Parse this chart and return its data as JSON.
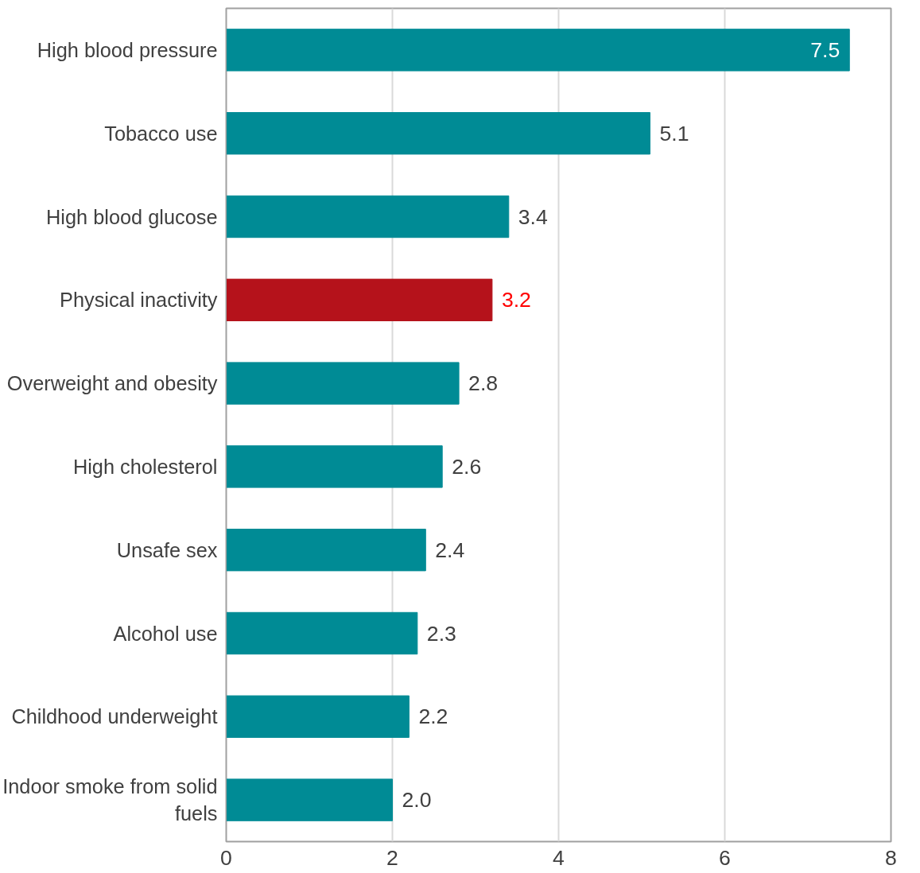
{
  "chart_data": {
    "type": "bar",
    "orientation": "horizontal",
    "categories": [
      "High blood pressure",
      "Tobacco use",
      "High blood glucose",
      "Physical inactivity",
      "Overweight and obesity",
      "High cholesterol",
      "Unsafe sex",
      "Alcohol use",
      "Childhood underweight",
      "Indoor smoke from solid fuels"
    ],
    "values": [
      7.5,
      5.1,
      3.4,
      3.2,
      2.8,
      2.6,
      2.4,
      2.3,
      2.2,
      2.0
    ],
    "colors": [
      "#008b95",
      "#008b95",
      "#008b95",
      "#b5121b",
      "#008b95",
      "#008b95",
      "#008b95",
      "#008b95",
      "#008b95",
      "#008b95"
    ],
    "value_labels": [
      "7.5",
      "5.1",
      "3.4",
      "3.2",
      "2.8",
      "2.6",
      "2.4",
      "2.3",
      "2.2",
      "2.0"
    ],
    "xlim": [
      0,
      8
    ],
    "xticks": [
      0,
      2,
      4,
      6,
      8
    ],
    "grid": "x"
  }
}
